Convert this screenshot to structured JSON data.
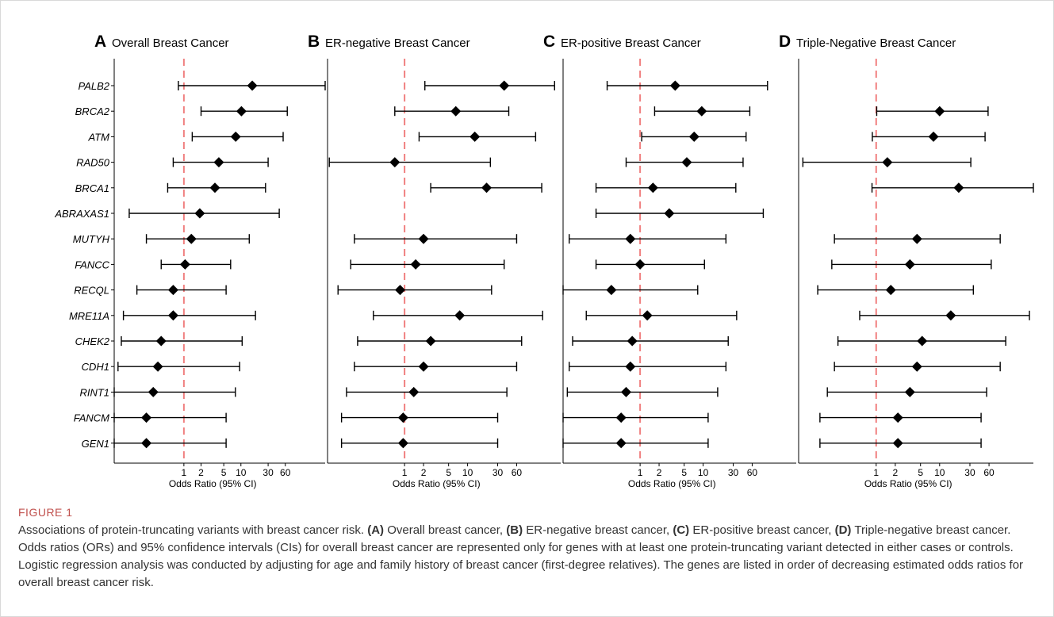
{
  "genes": [
    "PALB2",
    "BRCA2",
    "ATM",
    "RAD50",
    "BRCA1",
    "ABRAXAS1",
    "MUTYH",
    "FANCC",
    "RECQL",
    "MRE11A",
    "CHEK2",
    "CDH1",
    "RINT1",
    "FANCM",
    "GEN1"
  ],
  "x_tick_labels": [
    "1",
    "2",
    "5",
    "10",
    "30",
    "60"
  ],
  "x_ticks": [
    1,
    2,
    5,
    10,
    30,
    60
  ],
  "colors": {
    "reference_line": "#f08080",
    "marker": "#000000",
    "axis": "#000000"
  },
  "figure_label": "FIGURE 1",
  "caption": {
    "lead": "Associations of protein-truncating variants with breast cancer risk. ",
    "parts": [
      {
        "label": "(A)",
        "text": " Overall breast cancer, "
      },
      {
        "label": "(B)",
        "text": " ER-negative breast cancer, "
      },
      {
        "label": "(C)",
        "text": " ER-positive breast cancer, "
      },
      {
        "label": "(D)",
        "text": " Triple-negative breast cancer. "
      }
    ],
    "tail": "Odds ratios (ORs) and 95% confidence intervals (CIs) for overall breast cancer are represented only for genes with at least one protein-truncating variant detected in either cases or controls. Logistic regression analysis was conducted by adjusting for age and family history of breast cancer (first-degree relatives). The genes are listed in order of decreasing estimated odds ratios for overall breast cancer risk."
  },
  "chart_data": [
    {
      "type": "forest",
      "panel": "A",
      "title": "Overall Breast Cancer",
      "xlabel": "Odds Ratio (95% CI)",
      "x_scale": "log",
      "xlim": [
        0.06,
        300
      ],
      "reference_line": 1,
      "categories": [
        "PALB2",
        "BRCA2",
        "ATM",
        "RAD50",
        "BRCA1",
        "ABRAXAS1",
        "MUTYH",
        "FANCC",
        "RECQL",
        "MRE11A",
        "CHEK2",
        "CDH1",
        "RINT1",
        "FANCM",
        "GEN1"
      ],
      "or": [
        15.8,
        10.2,
        8.1,
        4.1,
        3.5,
        1.9,
        1.35,
        1.05,
        0.65,
        0.65,
        0.4,
        0.35,
        0.29,
        0.22,
        0.22
      ],
      "lower": [
        0.8,
        2.0,
        1.4,
        0.65,
        0.52,
        0.11,
        0.22,
        0.4,
        0.15,
        0.087,
        0.08,
        0.07,
        0.06,
        0.05,
        0.05
      ],
      "upper": [
        300,
        65,
        55,
        30,
        27,
        47,
        14,
        6.6,
        5.5,
        18,
        10.5,
        9.5,
        8,
        5.5,
        5.5
      ]
    },
    {
      "type": "forest",
      "panel": "B",
      "title": "ER-negative Breast Cancer",
      "xlabel": "Odds Ratio (95% CI)",
      "x_scale": "log",
      "xlim": [
        0.06,
        300
      ],
      "reference_line": 1,
      "categories": [
        "PALB2",
        "BRCA2",
        "ATM",
        "RAD50",
        "BRCA1",
        "ABRAXAS1",
        "MUTYH",
        "FANCC",
        "RECQL",
        "MRE11A",
        "CHEK2",
        "CDH1",
        "RINT1",
        "FANCM",
        "GEN1"
      ],
      "or": [
        38,
        6.5,
        13,
        0.7,
        20,
        null,
        2.0,
        1.5,
        0.85,
        7.5,
        2.6,
        2.0,
        1.4,
        0.95,
        0.95
      ],
      "lower": [
        2.1,
        0.7,
        1.7,
        0.064,
        2.6,
        null,
        0.16,
        0.14,
        0.088,
        0.32,
        0.18,
        0.16,
        0.12,
        0.1,
        0.1
      ],
      "upper": [
        240,
        45,
        120,
        23,
        150,
        null,
        60,
        38,
        24,
        155,
        72,
        60,
        42,
        30,
        30
      ]
    },
    {
      "type": "forest",
      "panel": "C",
      "title": "ER-positive Breast Cancer",
      "xlabel": "Odds Ratio (95% CI)",
      "x_scale": "log",
      "xlim": [
        0.06,
        300
      ],
      "reference_line": 1,
      "categories": [
        "PALB2",
        "BRCA2",
        "ATM",
        "RAD50",
        "BRCA1",
        "ABRAXAS1",
        "MUTYH",
        "FANCC",
        "RECQL",
        "MRE11A",
        "CHEK2",
        "CDH1",
        "RINT1",
        "FANCM",
        "GEN1"
      ],
      "or": [
        3.6,
        9.5,
        7.2,
        5.5,
        1.6,
        2.9,
        0.7,
        1.0,
        0.35,
        1.3,
        0.75,
        0.7,
        0.6,
        0.5,
        0.5
      ],
      "lower": [
        0.3,
        1.7,
        1.06,
        0.6,
        0.2,
        0.2,
        0.075,
        0.2,
        0.048,
        0.14,
        0.085,
        0.075,
        0.07,
        0.055,
        0.055
      ],
      "upper": [
        105,
        55,
        48,
        43,
        33,
        90,
        23,
        10.5,
        8.2,
        34,
        25,
        23,
        17,
        12,
        12
      ]
    },
    {
      "type": "forest",
      "panel": "D",
      "title": "Triple-Negative Breast Cancer",
      "xlabel": "Odds Ratio (95% CI)",
      "x_scale": "log",
      "xlim": [
        0.06,
        300
      ],
      "reference_line": 1,
      "categories": [
        "PALB2",
        "BRCA2",
        "ATM",
        "RAD50",
        "BRCA1",
        "ABRAXAS1",
        "MUTYH",
        "FANCC",
        "RECQL",
        "MRE11A",
        "CHEK2",
        "CDH1",
        "RINT1",
        "FANCM",
        "GEN1"
      ],
      "or": [
        null,
        10,
        8,
        1.5,
        20,
        null,
        4.4,
        3.4,
        1.7,
        15,
        5.3,
        4.4,
        3.4,
        2.2,
        2.2
      ],
      "lower": [
        null,
        1.02,
        0.87,
        0.07,
        0.86,
        null,
        0.22,
        0.2,
        0.12,
        0.55,
        0.25,
        0.22,
        0.17,
        0.13,
        0.13
      ],
      "upper": [
        null,
        58,
        52,
        31,
        330,
        null,
        90,
        65,
        34,
        260,
        110,
        90,
        55,
        45,
        45
      ]
    }
  ]
}
